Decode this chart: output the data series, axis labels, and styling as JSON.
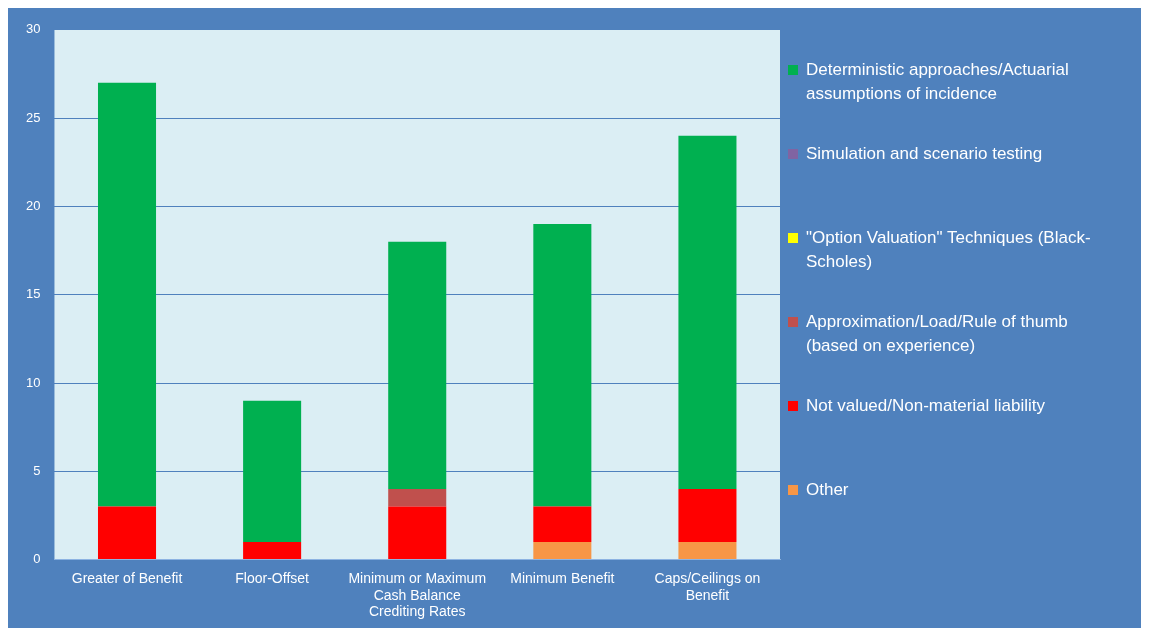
{
  "chart_data": {
    "type": "bar",
    "stacked": true,
    "categories": [
      "Greater of Benefit",
      "Floor-Offset",
      "Minimum or Maximum Cash Balance Crediting Rates",
      "Minimum Benefit",
      "Caps/Ceilings on Benefit"
    ],
    "series": [
      {
        "name": "Other",
        "color": "#f79646",
        "values": [
          0,
          0,
          0,
          1,
          1
        ]
      },
      {
        "name": "Not valued/Non-material liability",
        "color": "#ff0000",
        "values": [
          3,
          1,
          3,
          2,
          3
        ]
      },
      {
        "name": "Approximation/Load/Rule of thumb (based on experience)",
        "color": "#c0504d",
        "values": [
          0,
          0,
          1,
          0,
          0
        ]
      },
      {
        "name": "\"Option Valuation\" Techniques (Black-Scholes)",
        "color": "#ffff00",
        "values": [
          0,
          0,
          0,
          0,
          0
        ]
      },
      {
        "name": "Simulation and scenario testing",
        "color": "#8064a2",
        "values": [
          0,
          0,
          0,
          0,
          0
        ]
      },
      {
        "name": "Deterministic approaches/Actuarial assumptions of incidence",
        "color": "#00b050",
        "values": [
          24,
          8,
          14,
          16,
          20
        ]
      }
    ],
    "ylim": [
      0,
      30
    ],
    "yticks": [
      0,
      5,
      10,
      15,
      20,
      25,
      30
    ],
    "grid": "y",
    "legend": "right"
  }
}
